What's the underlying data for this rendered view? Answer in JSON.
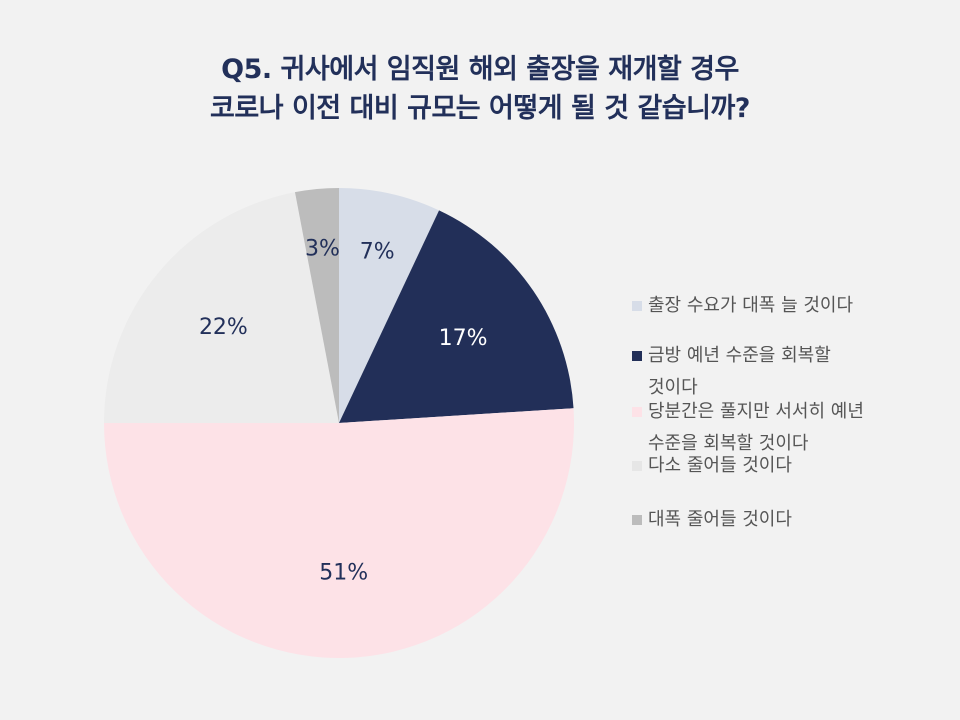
{
  "title": {
    "line1": "Q5. 귀사에서 임직원 해외 출장을 재개할 경우",
    "line2": "코로나 이전 대비 규모는 어떻게 될 것 같습니까?"
  },
  "chart_data": {
    "type": "pie",
    "start_angle_deg": 0,
    "direction": "clockwise",
    "slices": [
      {
        "label": "출장 수요가 대폭 늘 것이다",
        "value": 7,
        "display": "7%",
        "color": "#d7dde8",
        "label_color": "#22305a"
      },
      {
        "label": "금방 예년 수준을 회복할 것이다",
        "value": 17,
        "display": "17%",
        "color": "#222f58",
        "label_color": "#ffffff"
      },
      {
        "label": "당분간은 풀지만 서서히 예년 수준을 회복할 것이다",
        "value": 51,
        "display": "51%",
        "color": "#fde2e7",
        "label_color": "#22305a"
      },
      {
        "label": "다소 줄어들 것이다",
        "value": 22,
        "display": "22%",
        "color": "#ececec",
        "label_color": "#22305a"
      },
      {
        "label": "대폭 줄어들 것이다",
        "value": 3,
        "display": "3%",
        "color": "#bcbcbc",
        "label_color": "#22305a"
      }
    ],
    "legend_position": "right"
  },
  "legend": {
    "items": [
      {
        "line1": "출장 수요가 대폭 늘 것이다",
        "line2": ""
      },
      {
        "line1": "금방 예년 수준을 회복할",
        "line2": "것이다"
      },
      {
        "line1": "당분간은 풀지만 서서히 예년",
        "line2": "수준을 회복할 것이다"
      },
      {
        "line1": "다소 줄어들 것이다",
        "line2": ""
      },
      {
        "line1": "대폭 줄어들 것이다",
        "line2": ""
      }
    ]
  }
}
